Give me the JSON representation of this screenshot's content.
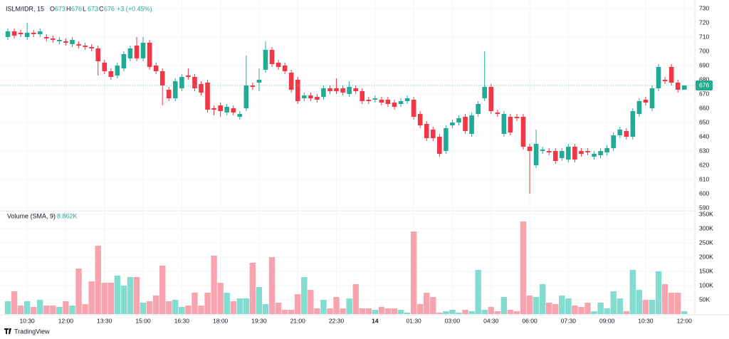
{
  "chart_data": {
    "type": "candlestick",
    "legend": {
      "symbol": "ISLM/IDR, 15",
      "labels": [
        "O",
        "H",
        "L",
        "C"
      ],
      "values": [
        673,
        676,
        673,
        676
      ],
      "change": "+3 (+0.45%)"
    },
    "volume_title": "Volume (SMA, 9)",
    "volume_sma": "8.862K",
    "last_price": 676,
    "brand": "TradingView",
    "up_color": "#22ab94",
    "down_color": "#f23645",
    "volume_up_color": "#82dccf",
    "volume_down_color": "#f7a4ae",
    "grid": true,
    "categories": [
      null,
      null,
      null,
      "10:30",
      null,
      null,
      null,
      null,
      null,
      "12:00",
      null,
      null,
      null,
      null,
      null,
      "13:30",
      null,
      null,
      null,
      null,
      null,
      "15:00",
      null,
      null,
      null,
      null,
      null,
      "16:30",
      null,
      null,
      null,
      null,
      null,
      "18:00",
      null,
      null,
      null,
      null,
      null,
      "19:30",
      null,
      null,
      null,
      null,
      null,
      "21:00",
      null,
      null,
      null,
      null,
      null,
      "22:30",
      null,
      null,
      null,
      null,
      null,
      "14",
      null,
      null,
      null,
      null,
      null,
      "01:30",
      null,
      null,
      null,
      null,
      null,
      "03:00",
      null,
      null,
      null,
      null,
      null,
      "04:30",
      null,
      null,
      null,
      null,
      null,
      "06:00",
      null,
      null,
      null,
      null,
      null,
      "07:30",
      null,
      null,
      null,
      null,
      null,
      "09:00",
      null,
      null,
      null,
      null,
      null,
      "10:30",
      null,
      null,
      null,
      null,
      null,
      "12:00"
    ],
    "open": [
      710,
      714,
      713,
      710,
      713,
      712,
      710,
      709,
      707,
      707,
      705,
      705,
      704,
      703,
      702,
      692,
      686,
      683,
      688,
      695,
      704,
      695,
      706,
      690,
      686,
      673,
      667,
      674,
      683,
      682,
      677,
      678,
      660,
      662,
      657,
      660,
      654,
      660,
      676,
      678,
      687,
      701,
      692,
      690,
      685,
      680,
      667,
      669,
      668,
      668,
      674,
      674,
      674,
      670,
      674,
      672,
      666,
      666,
      666,
      666,
      664,
      663,
      665,
      666,
      656,
      649,
      645,
      640,
      630,
      648,
      650,
      654,
      642,
      656,
      667,
      675,
      657,
      642,
      654,
      654,
      654,
      633,
      620,
      630,
      630,
      630,
      625,
      624,
      633,
      630,
      630,
      626,
      627,
      629,
      632,
      641,
      644,
      640,
      656,
      666,
      660,
      674,
      680,
      689,
      678,
      673
    ],
    "high": [
      716,
      716,
      715,
      720,
      715,
      716,
      712,
      711,
      710,
      709,
      710,
      707,
      706,
      705,
      704,
      694,
      688,
      692,
      700,
      704,
      710,
      710,
      708,
      692,
      688,
      675,
      681,
      684,
      688,
      684,
      679,
      680,
      662,
      664,
      663,
      662,
      658,
      697,
      678,
      688,
      707,
      703,
      694,
      692,
      687,
      682,
      671,
      671,
      670,
      676,
      676,
      681,
      676,
      679,
      676,
      674,
      668,
      669,
      668,
      668,
      666,
      667,
      669,
      668,
      658,
      651,
      647,
      642,
      648,
      652,
      655,
      656,
      657,
      665,
      700,
      677,
      659,
      658,
      656,
      656,
      656,
      635,
      645,
      633,
      632,
      632,
      632,
      635,
      635,
      632,
      632,
      630,
      632,
      634,
      643,
      647,
      646,
      660,
      667,
      668,
      676,
      691,
      682,
      691,
      680,
      676
    ],
    "low": [
      708,
      709,
      710,
      708,
      710,
      710,
      707,
      706,
      705,
      704,
      703,
      702,
      701,
      700,
      683,
      684,
      680,
      681,
      686,
      693,
      693,
      693,
      687,
      684,
      662,
      665,
      665,
      672,
      680,
      672,
      669,
      657,
      655,
      654,
      655,
      655,
      652,
      658,
      673,
      672,
      685,
      689,
      687,
      684,
      671,
      663,
      665,
      665,
      664,
      666,
      670,
      670,
      669,
      668,
      670,
      663,
      663,
      664,
      662,
      661,
      659,
      661,
      663,
      652,
      646,
      637,
      637,
      626,
      628,
      646,
      648,
      642,
      640,
      654,
      665,
      656,
      654,
      640,
      641,
      651,
      631,
      600,
      618,
      628,
      627,
      621,
      623,
      622,
      622,
      626,
      627,
      624,
      625,
      627,
      630,
      639,
      638,
      638,
      654,
      662,
      658,
      672,
      677,
      676,
      671,
      673
    ],
    "close": [
      714,
      711,
      712,
      713,
      712,
      714,
      709,
      708,
      708,
      706,
      708,
      704,
      703,
      702,
      693,
      686,
      682,
      690,
      698,
      702,
      695,
      706,
      689,
      686,
      676,
      667,
      679,
      682,
      682,
      674,
      671,
      659,
      659,
      658,
      661,
      657,
      656,
      676,
      675,
      680,
      701,
      691,
      689,
      686,
      673,
      665,
      669,
      667,
      666,
      674,
      672,
      672,
      671,
      675,
      672,
      665,
      665,
      667,
      664,
      663,
      661,
      665,
      667,
      654,
      648,
      639,
      639,
      628,
      646,
      650,
      653,
      644,
      655,
      663,
      675,
      658,
      656,
      656,
      643,
      653,
      633,
      630,
      635,
      631,
      629,
      623,
      630,
      633,
      624,
      628,
      629,
      628,
      630,
      632,
      641,
      645,
      640,
      658,
      665,
      664,
      674,
      689,
      679,
      678,
      673,
      676
    ],
    "volume": [
      45000,
      80000,
      30000,
      45000,
      25000,
      50000,
      30000,
      30000,
      25000,
      45000,
      30000,
      160000,
      35000,
      115000,
      240000,
      110000,
      110000,
      135000,
      100000,
      130000,
      130000,
      40000,
      45000,
      65000,
      170000,
      45000,
      50000,
      25000,
      30000,
      75000,
      30000,
      75000,
      205000,
      110000,
      75000,
      45000,
      55000,
      55000,
      180000,
      95000,
      35000,
      200000,
      40000,
      15000,
      15000,
      70000,
      130000,
      85000,
      20000,
      50000,
      20000,
      60000,
      20000,
      55000,
      105000,
      20000,
      20000,
      15000,
      25000,
      20000,
      20000,
      15000,
      5000,
      290000,
      35000,
      75000,
      60000,
      5000,
      10000,
      15000,
      5000,
      15000,
      10000,
      155000,
      15000,
      25000,
      10000,
      60000,
      15000,
      10000,
      325000,
      65000,
      60000,
      105000,
      40000,
      35000,
      65000,
      55000,
      30000,
      25000,
      40000,
      10000,
      40000,
      20000,
      80000,
      55000,
      10000,
      155000,
      85000,
      50000,
      50000,
      150000,
      105000,
      75000,
      75000,
      10000
    ],
    "ylim": [
      590,
      730
    ],
    "yticks": [
      590,
      600,
      610,
      620,
      630,
      640,
      650,
      660,
      670,
      680,
      690,
      700,
      710,
      720,
      730
    ],
    "y2lim": [
      0,
      350000
    ],
    "y2ticks": [
      {
        "value": 50000,
        "label": "50K"
      },
      {
        "value": 100000,
        "label": "100K"
      },
      {
        "value": 150000,
        "label": "150K"
      },
      {
        "value": 200000,
        "label": "200K"
      },
      {
        "value": 250000,
        "label": "250K"
      },
      {
        "value": 300000,
        "label": "300K"
      },
      {
        "value": 350000,
        "label": "350K"
      }
    ]
  }
}
